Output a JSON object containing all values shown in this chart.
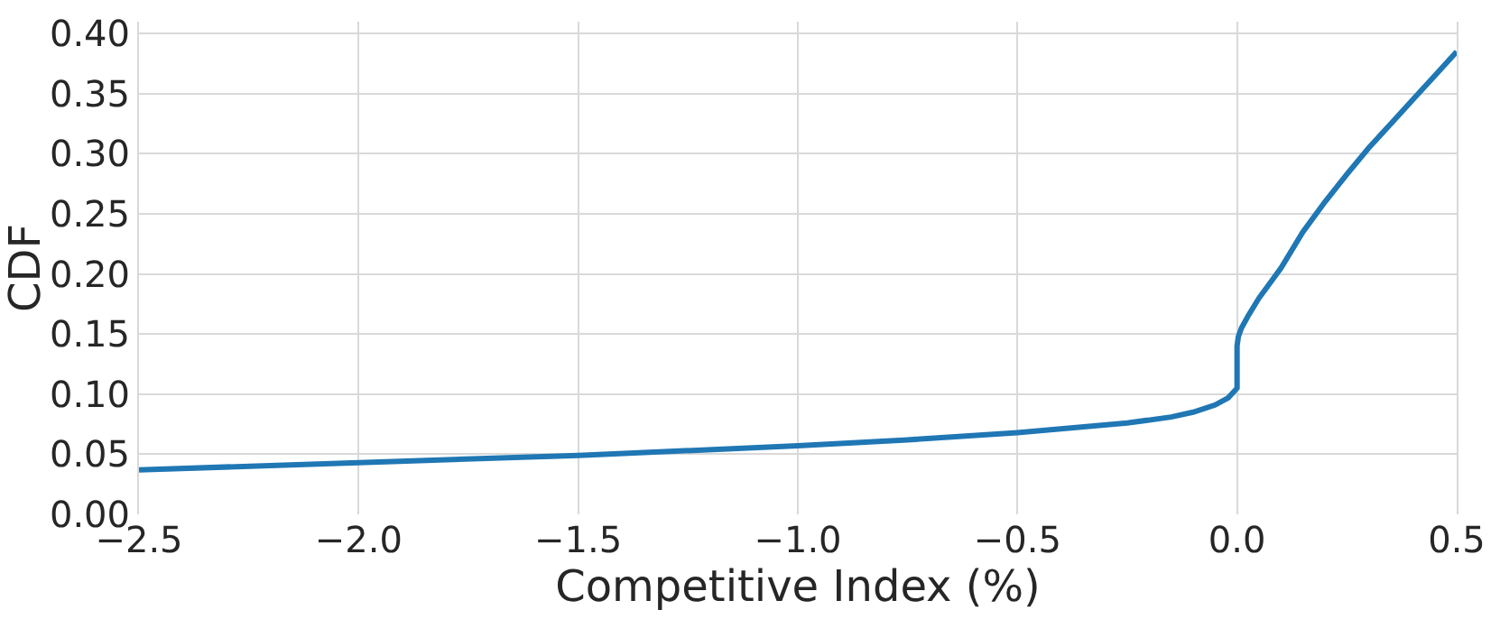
{
  "chart_data": {
    "type": "line",
    "xlabel": "Competitive Index (%)",
    "ylabel": "CDF",
    "x": [
      -2.5,
      -2.0,
      -1.5,
      -1.0,
      -0.75,
      -0.5,
      -0.25,
      -0.15,
      -0.1,
      -0.05,
      -0.02,
      0,
      0,
      0.003,
      0.01,
      0.025,
      0.05,
      0.1,
      0.15,
      0.2,
      0.25,
      0.3,
      0.35,
      0.4,
      0.45,
      0.5
    ],
    "series": [
      {
        "color": "#1f77b4",
        "values": [
          0.037,
          0.043,
          0.049,
          0.057,
          0.062,
          0.068,
          0.076,
          0.081,
          0.085,
          0.091,
          0.097,
          0.105,
          0.14,
          0.148,
          0.155,
          0.165,
          0.18,
          0.205,
          0.235,
          0.26,
          0.283,
          0.305,
          0.325,
          0.345,
          0.365,
          0.385
        ]
      }
    ],
    "xlim": [
      -2.5,
      0.5
    ],
    "xticks": [
      {
        "value": -2.5,
        "label": "−2.5"
      },
      {
        "value": -2.0,
        "label": "−2.0"
      },
      {
        "value": -1.5,
        "label": "−1.5"
      },
      {
        "value": -1.0,
        "label": "−1.0"
      },
      {
        "value": -0.5,
        "label": "−0.5"
      },
      {
        "value": 0,
        "label": "0.0"
      },
      {
        "value": 0.5,
        "label": "0.5"
      }
    ],
    "ylim": [
      0,
      0.41
    ],
    "yticks": [
      {
        "value": 0,
        "label": "0.00"
      },
      {
        "value": 0.05,
        "label": "0.05"
      },
      {
        "value": 0.1,
        "label": "0.10"
      },
      {
        "value": 0.15,
        "label": "0.15"
      },
      {
        "value": 0.2,
        "label": "0.20"
      },
      {
        "value": 0.25,
        "label": "0.25"
      },
      {
        "value": 0.3,
        "label": "0.30"
      },
      {
        "value": 0.35,
        "label": "0.35"
      },
      {
        "value": 0.4,
        "label": "0.40"
      }
    ],
    "grid": true,
    "marker": "none",
    "line_style": "solid"
  }
}
